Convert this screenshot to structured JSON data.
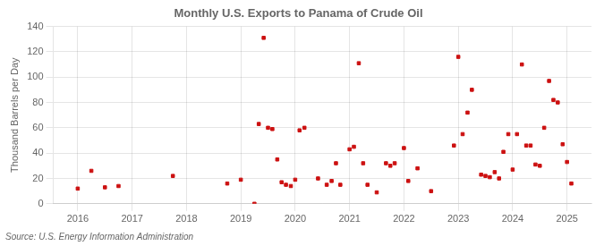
{
  "chart_data": {
    "type": "scatter",
    "title": "Monthly U.S. Exports to Panama of Crude Oil",
    "ylabel": "Thousand Barrels per Day",
    "annotations": [
      "Source: U.S. Energy Information Administration"
    ],
    "color": "#cc1111",
    "marker": "square",
    "grid": true,
    "x": [
      2016.0,
      2016.25,
      2016.5,
      2016.75,
      2017.75,
      2018.75,
      2019.0,
      2019.25,
      2019.33,
      2019.42,
      2019.5,
      2019.58,
      2019.67,
      2019.75,
      2019.83,
      2019.92,
      2020.0,
      2020.08,
      2020.17,
      2020.42,
      2020.58,
      2020.67,
      2020.75,
      2020.83,
      2021.0,
      2021.08,
      2021.17,
      2021.25,
      2021.33,
      2021.5,
      2021.67,
      2021.75,
      2021.83,
      2022.0,
      2022.08,
      2022.25,
      2022.5,
      2022.92,
      2023.0,
      2023.08,
      2023.17,
      2023.25,
      2023.42,
      2023.5,
      2023.58,
      2023.67,
      2023.75,
      2023.83,
      2023.92,
      2024.0,
      2024.08,
      2024.17,
      2024.25,
      2024.33,
      2024.42,
      2024.5,
      2024.58,
      2024.67,
      2024.75,
      2024.83,
      2024.92,
      2025.0,
      2025.08
    ],
    "values": [
      12,
      26,
      13,
      14,
      22,
      16,
      19,
      0,
      63,
      131,
      60,
      59,
      35,
      17,
      15,
      14,
      19,
      58,
      60,
      20,
      15,
      18,
      32,
      15,
      43,
      45,
      111,
      32,
      15,
      9,
      32,
      30,
      32,
      44,
      18,
      28,
      10,
      46,
      116,
      55,
      72,
      90,
      23,
      22,
      21,
      25,
      20,
      41,
      55,
      27,
      55,
      110,
      46,
      46,
      31,
      30,
      60,
      97,
      82,
      80,
      47,
      33,
      16
    ],
    "xlim": [
      2015.55,
      2025.45
    ],
    "xticks": [
      2016,
      2017,
      2018,
      2019,
      2020,
      2021,
      2022,
      2023,
      2024,
      2025
    ],
    "ylim": [
      0,
      140
    ],
    "yticks": [
      0,
      20,
      40,
      60,
      80,
      100,
      120,
      140
    ]
  }
}
